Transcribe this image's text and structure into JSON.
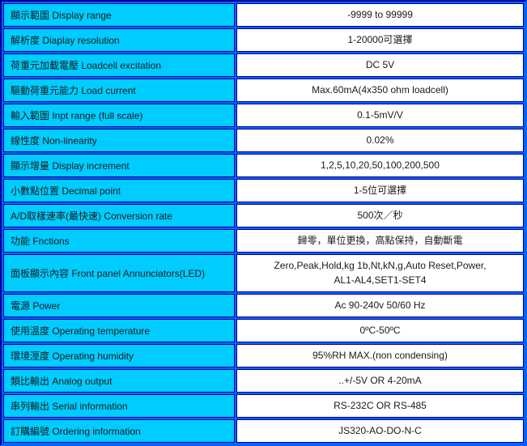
{
  "table": {
    "colors": {
      "label_background": "#00CCFF",
      "value_background": "#FFFFFF",
      "cell_border": "#000099",
      "grid_channel": "#0066FF",
      "text": "#1a1a1a"
    },
    "rows": [
      {
        "label": "顯示範圍 Display range",
        "value": "-9999 to 99999"
      },
      {
        "label": "解析度 Diaplay resolution",
        "value": "1-20000可選擇"
      },
      {
        "label": "荷重元加載電壓 Loadcell excitation",
        "value": "DC 5V"
      },
      {
        "label": "驅動荷重元能力 Load current",
        "value": "Max.60mA(4x350 ohm loadcell)"
      },
      {
        "label": "輸入範圍 Inpt range (full scale)",
        "value": "0.1-5mV/V"
      },
      {
        "label": "線性度 Non-linearity",
        "value": "0.02%"
      },
      {
        "label": "顯示增量 Display increment",
        "value": "1,2,5,10,20,50,100,200,500"
      },
      {
        "label": "小數點位置 Decimal point",
        "value": "1-5位可選擇"
      },
      {
        "label": "A/D取樣速率(最快速) Conversion rate",
        "value": "500次／秒"
      },
      {
        "label": "功能 Fnctions",
        "value": "歸零，單位更換，高點保持，自動斷電"
      },
      {
        "label": "面板顯示內容 Front panel Annunciators(LED)",
        "value": "Zero,Peak,Hold,kg 1b,Nt,kN,g,Auto Reset,Power,\nAL1-AL4,SET1-SET4",
        "tall": true
      },
      {
        "label": "電源 Power",
        "value": "Ac 90-240v 50/60 Hz"
      },
      {
        "label": "使用溫度 Operating temperature",
        "value": "0ºC-50ºC"
      },
      {
        "label": "環境溼度 Operating humidity",
        "value": "95%RH MAX.(non condensing)"
      },
      {
        "label": "類比輸出 Analog output",
        "value": "..+/-5V OR 4-20mA"
      },
      {
        "label": "串列輸出 Serial information",
        "value": "RS-232C OR RS-485"
      },
      {
        "label": "訂購編號 Ordering information",
        "value": "JS320-AO-DO-N-C"
      }
    ]
  }
}
